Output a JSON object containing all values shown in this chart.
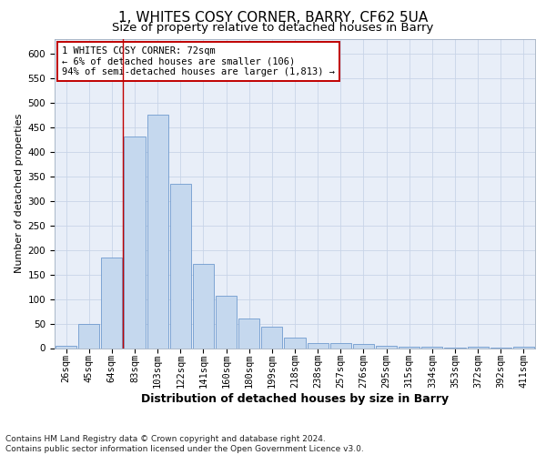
{
  "title1": "1, WHITES COSY CORNER, BARRY, CF62 5UA",
  "title2": "Size of property relative to detached houses in Barry",
  "xlabel": "Distribution of detached houses by size in Barry",
  "ylabel": "Number of detached properties",
  "bar_labels": [
    "26sqm",
    "45sqm",
    "64sqm",
    "83sqm",
    "103sqm",
    "122sqm",
    "141sqm",
    "160sqm",
    "180sqm",
    "199sqm",
    "218sqm",
    "238sqm",
    "257sqm",
    "276sqm",
    "295sqm",
    "315sqm",
    "334sqm",
    "353sqm",
    "372sqm",
    "392sqm",
    "411sqm"
  ],
  "bar_values": [
    5,
    50,
    185,
    430,
    475,
    335,
    172,
    107,
    60,
    43,
    22,
    10,
    10,
    8,
    5,
    3,
    2,
    1,
    2,
    1,
    3
  ],
  "bar_color": "#c5d8ee",
  "bar_edge_color": "#5b8dc8",
  "vline_x_index": 2.5,
  "vline_color": "#c00000",
  "annotation_text": "1 WHITES COSY CORNER: 72sqm\n← 6% of detached houses are smaller (106)\n94% of semi-detached houses are larger (1,813) →",
  "annotation_box_color": "#ffffff",
  "annotation_box_edge_color": "#c00000",
  "ylim": [
    0,
    630
  ],
  "yticks": [
    0,
    50,
    100,
    150,
    200,
    250,
    300,
    350,
    400,
    450,
    500,
    550,
    600
  ],
  "background_color": "#ffffff",
  "grid_color": "#c8d4e8",
  "ax_bg_color": "#e8eef8",
  "footer_line1": "Contains HM Land Registry data © Crown copyright and database right 2024.",
  "footer_line2": "Contains public sector information licensed under the Open Government Licence v3.0.",
  "title1_fontsize": 11,
  "title2_fontsize": 9.5,
  "xlabel_fontsize": 9,
  "ylabel_fontsize": 8,
  "tick_fontsize": 7.5,
  "footer_fontsize": 6.5,
  "annotation_fontsize": 7.5
}
